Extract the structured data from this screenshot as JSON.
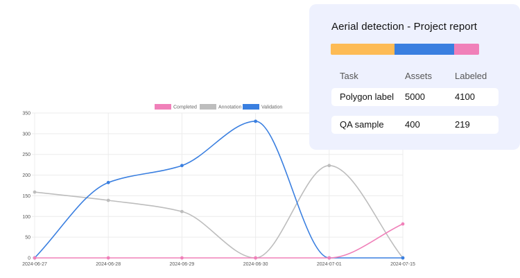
{
  "chart_data": {
    "type": "line",
    "categories": [
      "2024-06-27",
      "2024-06-28",
      "2024-06-29",
      "2024-06-30",
      "2024-07-01",
      "2024-07-15"
    ],
    "series": [
      {
        "name": "Completed",
        "color": "#f080b9",
        "values": [
          0,
          0,
          0,
          0,
          0,
          82
        ]
      },
      {
        "name": "Annotation",
        "color": "#bdbdbd",
        "values": [
          159,
          139,
          112,
          0,
          223,
          0
        ]
      },
      {
        "name": "Validation",
        "color": "#3a7fe0",
        "values": [
          0,
          182,
          223,
          330,
          0,
          0
        ]
      }
    ],
    "ylim": [
      0,
      350
    ],
    "yticks": [
      "0",
      "50",
      "100",
      "150",
      "200",
      "250",
      "300",
      "350"
    ],
    "grid": true,
    "legend_position": "top-center",
    "title": "",
    "xlabel": "",
    "ylabel": ""
  },
  "report": {
    "title": "Aerial detection - Project report",
    "progress_segments": [
      {
        "color": "#fdbb55",
        "fraction": 0.43
      },
      {
        "color": "#3a7fe0",
        "fraction": 0.4
      },
      {
        "color": "#f080b9",
        "fraction": 0.17
      }
    ],
    "columns": {
      "task": "Task",
      "assets": "Assets",
      "labeled": "Labeled"
    },
    "rows": [
      {
        "task": "Polygon label",
        "assets": "5000",
        "labeled": "4100"
      },
      {
        "task": "QA sample",
        "assets": "400",
        "labeled": "219"
      }
    ]
  }
}
